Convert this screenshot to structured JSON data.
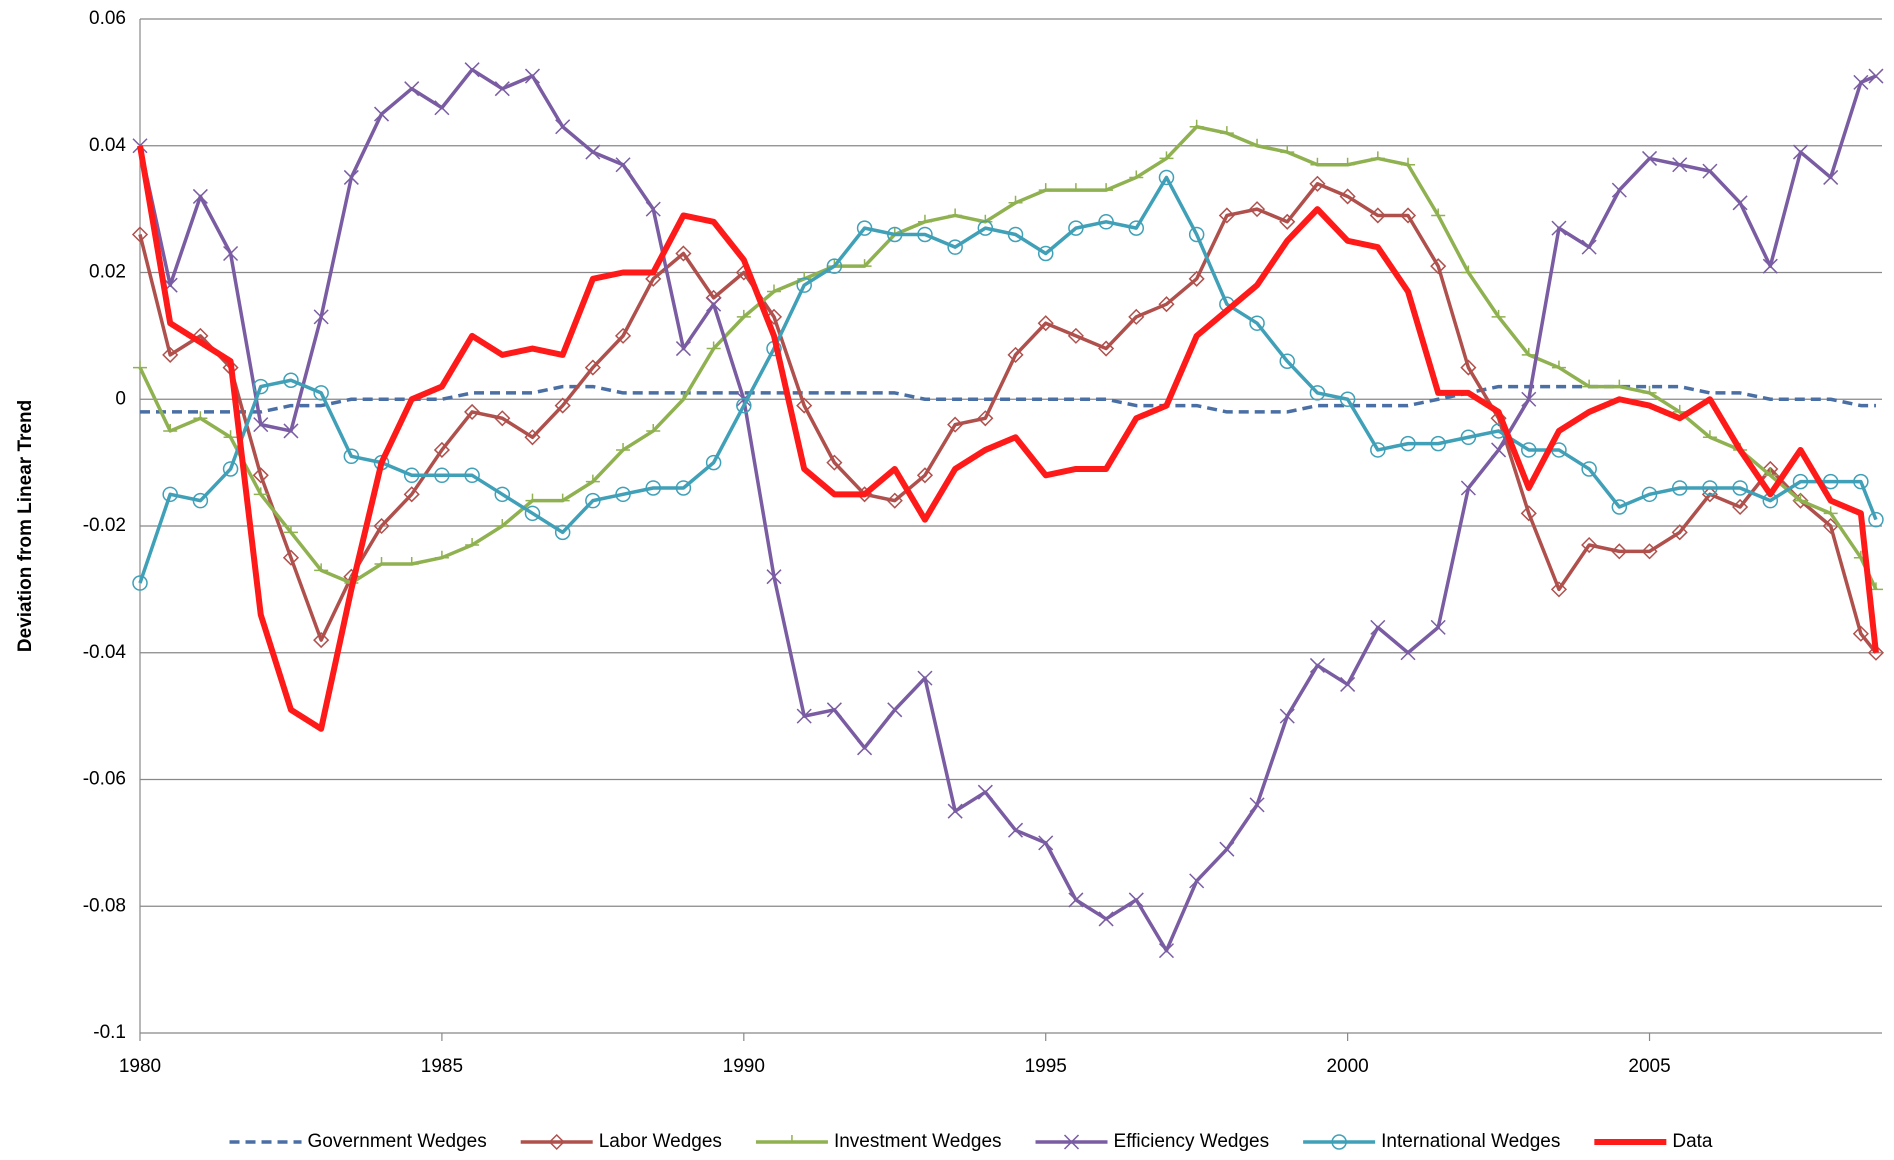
{
  "chart_data": {
    "type": "line",
    "y_label": "Deviation from Linear Trend",
    "x": [
      1980,
      1980.5,
      1981,
      1981.5,
      1982,
      1982.5,
      1983,
      1983.5,
      1984,
      1984.5,
      1985,
      1985.5,
      1986,
      1986.5,
      1987,
      1987.5,
      1988,
      1988.5,
      1989,
      1989.5,
      1990,
      1990.5,
      1991,
      1991.5,
      1992,
      1992.5,
      1993,
      1993.5,
      1994,
      1994.5,
      1995,
      1995.5,
      1996,
      1996.5,
      1997,
      1997.5,
      1998,
      1998.5,
      1999,
      1999.5,
      2000,
      2000.5,
      2001,
      2001.5,
      2002,
      2002.5,
      2003,
      2003.5,
      2004,
      2004.5,
      2005,
      2005.5,
      2006,
      2006.5,
      2007,
      2007.5,
      2008,
      2008.5,
      2008.75
    ],
    "xlim": [
      1980,
      2008.85
    ],
    "xticks": [
      1980,
      1985,
      1990,
      1995,
      2000,
      2005
    ],
    "ylim": [
      -0.1,
      0.06
    ],
    "yticks": [
      -0.1,
      -0.08,
      -0.06,
      -0.04,
      -0.02,
      0,
      0.02,
      0.04,
      0.06
    ],
    "grid": true,
    "legend": "bottom",
    "series": [
      {
        "name": "Government Wedges",
        "color": "#4a6fa5",
        "marker": "none",
        "dash": true,
        "values": [
          -0.002,
          -0.002,
          -0.002,
          -0.002,
          -0.002,
          -0.001,
          -0.001,
          0,
          0,
          0,
          0,
          0.001,
          0.001,
          0.001,
          0.002,
          0.002,
          0.001,
          0.001,
          0.001,
          0.001,
          0.001,
          0.001,
          0.001,
          0.001,
          0.001,
          0.001,
          0,
          0,
          0,
          0,
          0,
          0,
          0,
          -0.001,
          -0.001,
          -0.001,
          -0.002,
          -0.002,
          -0.002,
          -0.001,
          -0.001,
          -0.001,
          -0.001,
          0,
          0.001,
          0.002,
          0.002,
          0.002,
          0.002,
          0.002,
          0.002,
          0.002,
          0.001,
          0.001,
          0,
          0,
          0,
          -0.001,
          -0.001
        ]
      },
      {
        "name": "Labor Wedges",
        "color": "#b0504c",
        "marker": "diamond",
        "values": [
          0.026,
          0.007,
          0.01,
          0.005,
          -0.012,
          -0.025,
          -0.038,
          -0.028,
          -0.02,
          -0.015,
          -0.008,
          -0.002,
          -0.003,
          -0.006,
          -0.001,
          0.005,
          0.01,
          0.019,
          0.023,
          0.016,
          0.02,
          0.013,
          -0.001,
          -0.01,
          -0.015,
          -0.016,
          -0.012,
          -0.004,
          -0.003,
          0.007,
          0.012,
          0.01,
          0.008,
          0.013,
          0.015,
          0.019,
          0.029,
          0.03,
          0.028,
          0.034,
          0.032,
          0.029,
          0.029,
          0.021,
          0.005,
          -0.003,
          -0.018,
          -0.03,
          -0.023,
          -0.024,
          -0.024,
          -0.021,
          -0.015,
          -0.017,
          -0.011,
          -0.016,
          -0.02,
          -0.037,
          -0.04
        ]
      },
      {
        "name": "Investment Wedges",
        "color": "#8fb150",
        "marker": "tick",
        "values": [
          0.005,
          -0.005,
          -0.003,
          -0.006,
          -0.015,
          -0.021,
          -0.027,
          -0.029,
          -0.026,
          -0.026,
          -0.025,
          -0.023,
          -0.02,
          -0.016,
          -0.016,
          -0.013,
          -0.008,
          -0.005,
          0,
          0.008,
          0.013,
          0.017,
          0.019,
          0.021,
          0.021,
          0.026,
          0.028,
          0.029,
          0.028,
          0.031,
          0.033,
          0.033,
          0.033,
          0.035,
          0.038,
          0.043,
          0.042,
          0.04,
          0.039,
          0.037,
          0.037,
          0.038,
          0.037,
          0.029,
          0.02,
          0.013,
          0.007,
          0.005,
          0.002,
          0.002,
          0.001,
          -0.002,
          -0.006,
          -0.008,
          -0.012,
          -0.016,
          -0.018,
          -0.025,
          -0.03
        ]
      },
      {
        "name": "Efficiency Wedges",
        "color": "#7a5ca3",
        "marker": "cross",
        "values": [
          0.04,
          0.018,
          0.032,
          0.023,
          -0.004,
          -0.005,
          0.013,
          0.035,
          0.045,
          0.049,
          0.046,
          0.052,
          0.049,
          0.051,
          0.043,
          0.039,
          0.037,
          0.03,
          0.008,
          0.015,
          0,
          -0.028,
          -0.05,
          -0.049,
          -0.055,
          -0.049,
          -0.044,
          -0.065,
          -0.062,
          -0.068,
          -0.07,
          -0.079,
          -0.082,
          -0.079,
          -0.087,
          -0.076,
          -0.071,
          -0.064,
          -0.05,
          -0.042,
          -0.045,
          -0.036,
          -0.04,
          -0.036,
          -0.014,
          -0.008,
          0,
          0.027,
          0.024,
          0.033,
          0.038,
          0.037,
          0.036,
          0.031,
          0.021,
          0.039,
          0.035,
          0.05,
          0.051
        ]
      },
      {
        "name": "International Wedges",
        "color": "#3fa0b8",
        "marker": "circle",
        "values": [
          -0.029,
          -0.015,
          -0.016,
          -0.011,
          0.002,
          0.003,
          0.001,
          -0.009,
          -0.01,
          -0.012,
          -0.012,
          -0.012,
          -0.015,
          -0.018,
          -0.021,
          -0.016,
          -0.015,
          -0.014,
          -0.014,
          -0.01,
          -0.001,
          0.008,
          0.018,
          0.021,
          0.027,
          0.026,
          0.026,
          0.024,
          0.027,
          0.026,
          0.023,
          0.027,
          0.028,
          0.027,
          0.035,
          0.026,
          0.015,
          0.012,
          0.006,
          0.001,
          0,
          -0.008,
          -0.007,
          -0.007,
          -0.006,
          -0.005,
          -0.008,
          -0.008,
          -0.011,
          -0.017,
          -0.015,
          -0.014,
          -0.014,
          -0.014,
          -0.016,
          -0.013,
          -0.013,
          -0.013,
          -0.019
        ]
      },
      {
        "name": "Data",
        "color": "#ff1a1a",
        "marker": "none",
        "values": [
          0.04,
          0.012,
          0.009,
          0.006,
          -0.034,
          -0.049,
          -0.052,
          -0.03,
          -0.01,
          0,
          0.002,
          0.01,
          0.007,
          0.008,
          0.007,
          0.019,
          0.02,
          0.02,
          0.029,
          0.028,
          0.022,
          0.01,
          -0.011,
          -0.015,
          -0.015,
          -0.011,
          -0.019,
          -0.011,
          -0.008,
          -0.006,
          -0.012,
          -0.011,
          -0.011,
          -0.003,
          -0.001,
          0.01,
          0.014,
          0.018,
          0.025,
          0.03,
          0.025,
          0.024,
          0.017,
          0.001,
          0.001,
          -0.002,
          -0.014,
          -0.005,
          -0.002,
          0,
          -0.001,
          -0.003,
          0,
          -0.008,
          -0.015,
          -0.008,
          -0.016,
          -0.018,
          -0.04
        ]
      }
    ]
  }
}
